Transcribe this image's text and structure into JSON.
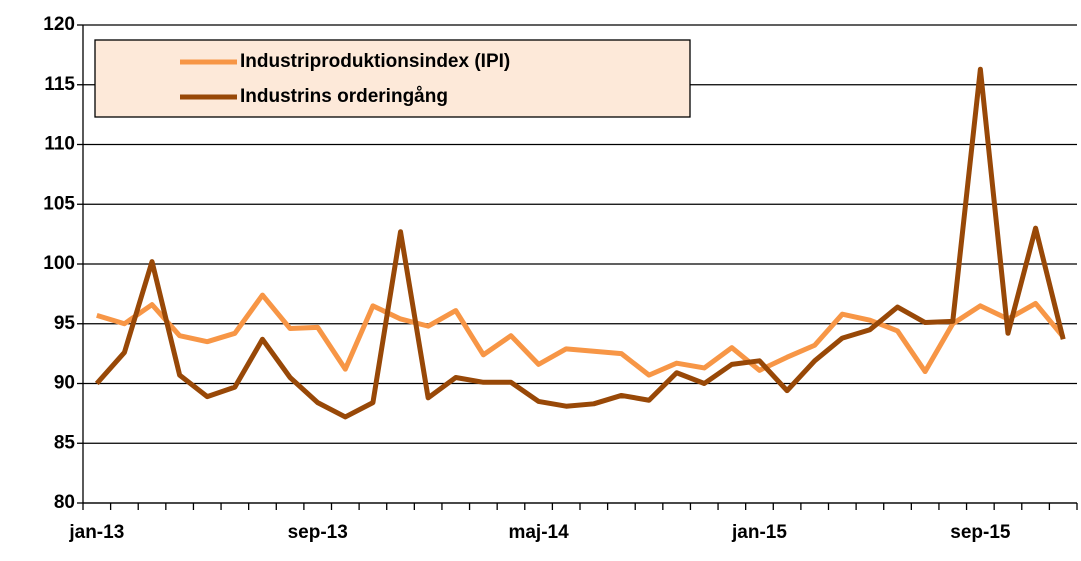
{
  "chart_data": {
    "type": "line",
    "categories": [
      "jan-13",
      null,
      null,
      null,
      null,
      null,
      null,
      null,
      "sep-13",
      null,
      null,
      null,
      null,
      null,
      null,
      null,
      "maj-14",
      null,
      null,
      null,
      null,
      null,
      null,
      null,
      "jan-15",
      null,
      null,
      null,
      null,
      null,
      null,
      null,
      "sep-15",
      null,
      null,
      null
    ],
    "series": [
      {
        "name": "Industriproduktionsindex (IPI)",
        "color": "#f79646",
        "values": [
          95.7,
          95.0,
          96.6,
          94.0,
          93.5,
          94.2,
          97.4,
          94.6,
          94.7,
          91.2,
          96.5,
          95.4,
          94.8,
          96.1,
          92.4,
          94.0,
          91.6,
          92.9,
          92.7,
          92.5,
          90.7,
          91.7,
          91.3,
          93.0,
          91.1,
          92.2,
          93.2,
          95.8,
          95.3,
          94.4,
          91.0,
          95.0,
          96.5,
          95.4,
          96.7,
          93.9
        ]
      },
      {
        "name": "Industrins orderingång",
        "color": "#984807",
        "values": [
          90.0,
          92.6,
          100.2,
          90.7,
          88.9,
          89.7,
          93.7,
          90.5,
          88.4,
          87.2,
          88.4,
          102.7,
          88.8,
          90.5,
          90.1,
          90.1,
          88.5,
          88.1,
          88.3,
          89.0,
          88.6,
          90.9,
          90.0,
          91.6,
          91.9,
          89.4,
          91.9,
          93.8,
          94.5,
          96.4,
          95.1,
          95.2,
          116.3,
          94.2,
          103.0,
          93.7
        ]
      }
    ],
    "ylim": [
      80,
      120
    ],
    "yticks": [
      80,
      85,
      90,
      95,
      100,
      105,
      110,
      115,
      120
    ],
    "grid": true,
    "legend": "top-left"
  }
}
